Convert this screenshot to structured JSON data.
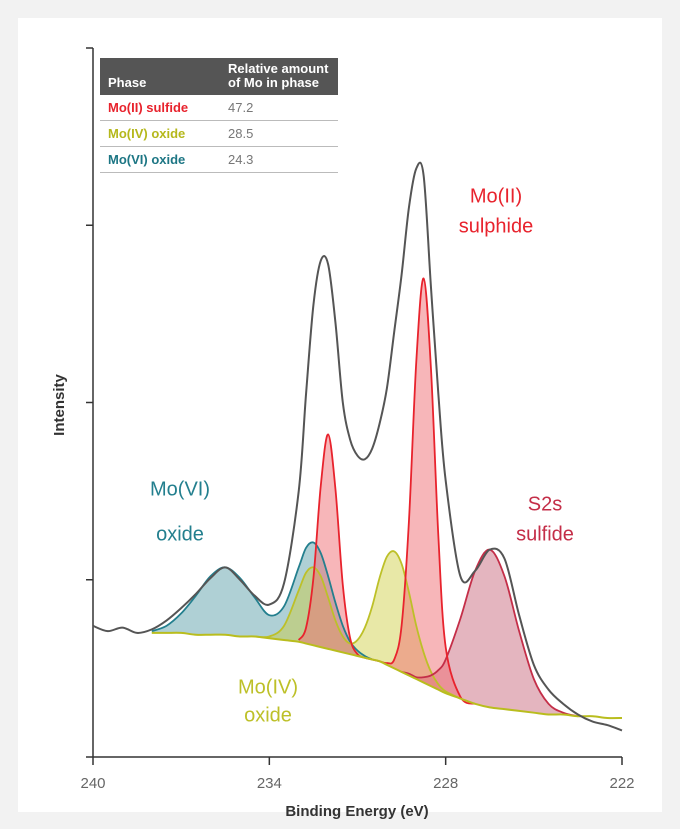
{
  "chart_data": {
    "type": "line",
    "xlabel": "Binding Energy (eV)",
    "ylabel": "Intensity",
    "xlim": [
      240,
      222
    ],
    "xticks": [
      240,
      234,
      228,
      222
    ],
    "ylim": [
      0,
      4
    ],
    "yticks": [
      0,
      1,
      2,
      3,
      4
    ],
    "x": [
      240,
      239.5,
      239,
      238.5,
      238,
      237.5,
      237,
      236.5,
      236,
      235.5,
      235,
      234.5,
      234,
      233.5,
      233,
      232.75,
      232.5,
      232.25,
      232,
      231.75,
      231.5,
      231.25,
      231,
      230.75,
      230.5,
      230.25,
      230,
      229.75,
      229.5,
      229.25,
      229,
      228.75,
      228.5,
      228.25,
      228,
      227.5,
      227,
      226.5,
      226,
      225.5,
      225,
      224.5,
      224,
      223.5,
      223,
      222.5,
      222
    ],
    "envelope": {
      "color": "#555555",
      "values": [
        0.74,
        0.71,
        0.73,
        0.7,
        0.72,
        0.77,
        0.84,
        0.92,
        1.01,
        1.07,
        1.0,
        0.91,
        0.86,
        0.98,
        1.5,
        2.05,
        2.55,
        2.8,
        2.78,
        2.45,
        2.0,
        1.79,
        1.7,
        1.68,
        1.74,
        1.88,
        2.08,
        2.4,
        2.72,
        3.1,
        3.32,
        3.28,
        2.65,
        2.05,
        1.56,
        1.02,
        1.05,
        1.17,
        1.12,
        0.8,
        0.52,
        0.38,
        0.3,
        0.24,
        0.2,
        0.18,
        0.15
      ]
    },
    "background": {
      "color": "#b9bd1e",
      "values": [
        null,
        null,
        null,
        null,
        0.7,
        0.7,
        0.7,
        0.69,
        0.69,
        0.69,
        0.68,
        0.68,
        0.67,
        0.66,
        0.65,
        0.64,
        0.63,
        0.62,
        0.61,
        0.6,
        0.59,
        0.58,
        0.57,
        0.56,
        0.55,
        0.54,
        0.52,
        0.5,
        0.48,
        0.46,
        0.44,
        0.42,
        0.4,
        0.38,
        0.36,
        0.33,
        0.3,
        0.28,
        0.27,
        0.26,
        0.25,
        0.24,
        0.24,
        0.23,
        0.23,
        0.22,
        0.22
      ]
    },
    "series": [
      {
        "label": [
          "Mo(VI)",
          "oxide"
        ],
        "color": "#237f8e",
        "fill": "rgba(110,170,178,0.55)",
        "values": [
          null,
          null,
          null,
          null,
          0.71,
          0.74,
          0.81,
          0.91,
          1.02,
          1.07,
          1.01,
          0.9,
          0.8,
          0.85,
          1.07,
          1.18,
          1.21,
          1.15,
          1.02,
          0.87,
          0.74,
          0.65,
          0.6,
          0.57,
          0.55,
          null,
          null,
          null,
          null,
          null,
          null,
          null,
          null,
          null,
          null,
          null,
          null,
          null,
          null,
          null,
          null,
          null,
          null,
          null,
          null,
          null,
          null
        ]
      },
      {
        "label": [
          "Mo(IV)",
          "oxide"
        ],
        "color": "#bdc028",
        "fill": "rgba(205,205,60,0.45)",
        "values": [
          null,
          null,
          null,
          null,
          null,
          null,
          null,
          null,
          null,
          null,
          null,
          0.68,
          0.68,
          0.74,
          0.94,
          1.04,
          1.07,
          1.02,
          0.9,
          0.77,
          0.68,
          0.64,
          0.66,
          0.73,
          0.85,
          1.01,
          1.13,
          1.16,
          1.09,
          0.93,
          0.74,
          0.59,
          0.48,
          0.41,
          0.37,
          0.33,
          null,
          null,
          null,
          null,
          null,
          null,
          null,
          null,
          null,
          null,
          null
        ]
      },
      {
        "label": [
          "S2s",
          "sulfide"
        ],
        "color": "#c42e48",
        "fill": "rgba(205,120,138,0.55)",
        "values": [
          null,
          null,
          null,
          null,
          null,
          null,
          null,
          null,
          null,
          null,
          null,
          null,
          null,
          null,
          null,
          null,
          null,
          null,
          null,
          null,
          null,
          null,
          null,
          null,
          null,
          null,
          null,
          null,
          0.48,
          0.47,
          0.45,
          0.45,
          0.46,
          0.49,
          0.55,
          0.78,
          1.05,
          1.17,
          1.02,
          0.71,
          0.44,
          0.3,
          0.25,
          0.23,
          null,
          null,
          null
        ]
      },
      {
        "label": [
          "Mo(II)",
          "sulphide"
        ],
        "color": "#e8232d",
        "fill": "rgba(240,110,115,0.5)",
        "values": [
          null,
          null,
          null,
          null,
          null,
          null,
          null,
          null,
          null,
          null,
          null,
          null,
          null,
          null,
          0.66,
          0.73,
          1.01,
          1.53,
          1.82,
          1.51,
          0.97,
          0.67,
          0.58,
          0.56,
          0.55,
          0.54,
          0.53,
          0.55,
          0.74,
          1.33,
          2.23,
          2.7,
          2.19,
          1.25,
          0.62,
          0.34,
          0.3,
          null,
          null,
          null,
          null,
          null,
          null,
          null,
          null,
          null,
          null
        ]
      }
    ],
    "table": {
      "columns": [
        "Phase",
        "Relative amount of Mo in phase"
      ],
      "rows": [
        {
          "phase": "Mo(II) sulfide",
          "amount": 47.2,
          "color": "#e8232d"
        },
        {
          "phase": "Mo(IV) oxide",
          "amount": 28.5,
          "color": "#b5b81c"
        },
        {
          "phase": "Mo(VI) oxide",
          "amount": 24.3,
          "color": "#1d7684"
        }
      ]
    }
  }
}
